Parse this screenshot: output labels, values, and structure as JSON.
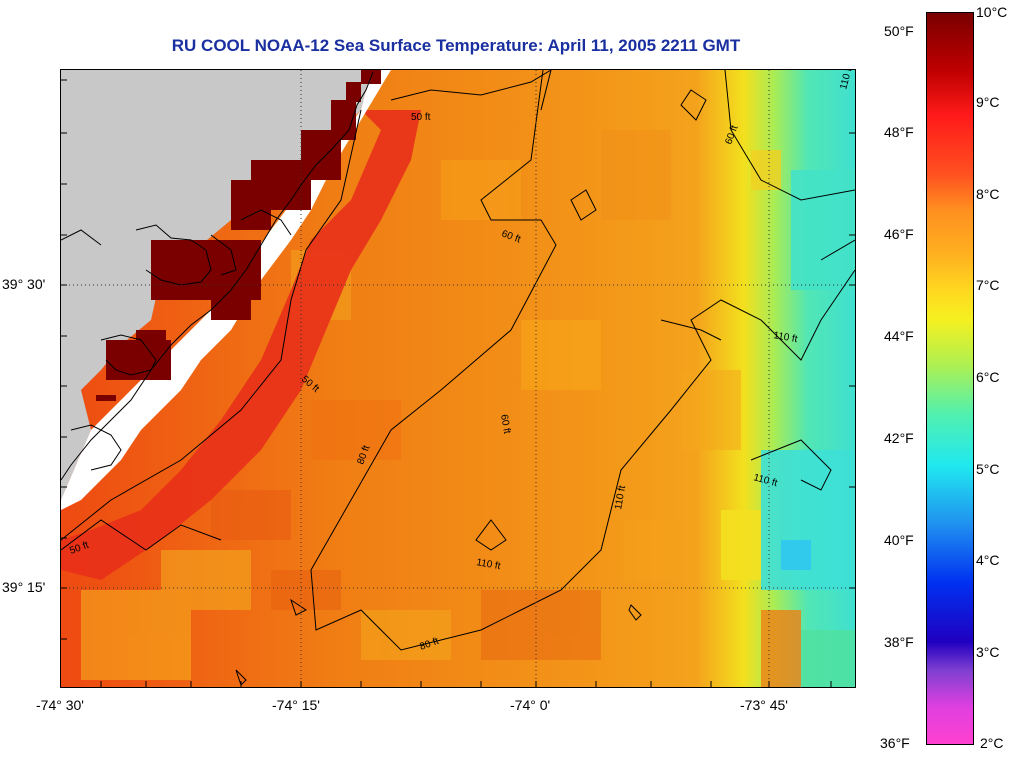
{
  "title": "RU COOL  NOAA-12  Sea Surface Temperature:  April 11, 2005 2211 GMT",
  "x_ticks": [
    "-74° 30'",
    "-74° 15'",
    "-74° 0'",
    "-73° 45'"
  ],
  "y_ticks": [
    "39° 30'",
    "39° 15'"
  ],
  "contour_labels": [
    "50 ft",
    "50 ft",
    "50 ft",
    "60 ft",
    "60 ft",
    "60 ft",
    "80 ft",
    "80 ft",
    "110 ft",
    "110 ft",
    "110 ft",
    "110 ft",
    "110 ft"
  ],
  "colorbar": {
    "fahrenheit": [
      "50°F",
      "48°F",
      "46°F",
      "44°F",
      "42°F",
      "40°F",
      "38°F",
      "36°F"
    ],
    "celsius": [
      "10°C",
      "9°C",
      "8°C",
      "7°C",
      "6°C",
      "5°C",
      "4°C",
      "3°C",
      "2°C"
    ]
  },
  "colors": {
    "land": "#c8c8c8",
    "coast_hot": "#7a0000",
    "near_shore": "#e83010",
    "shelf": "#f08010",
    "mid_shelf": "#f3a018",
    "front": "#f5e020",
    "offshore": "#40e8c8",
    "title": "#1a2fa0"
  }
}
